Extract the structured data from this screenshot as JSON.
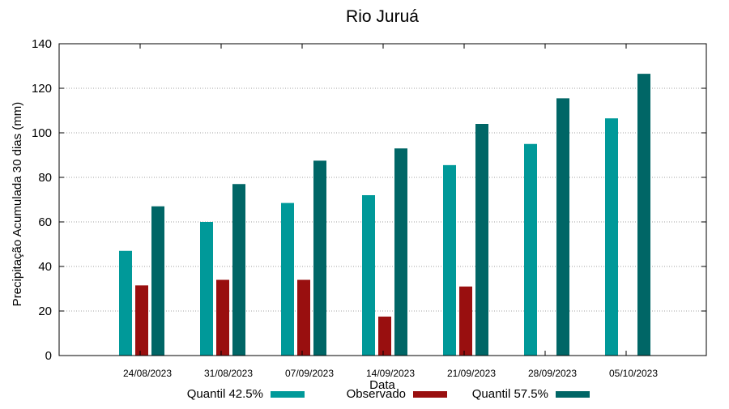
{
  "chart_data": {
    "type": "bar",
    "title": "Rio Juruá",
    "xlabel": "Data",
    "ylabel": "Precipitação Acumulada 30 dias (mm)",
    "categories": [
      "24/08/2023",
      "31/08/2023",
      "07/09/2023",
      "14/09/2023",
      "21/09/2023",
      "28/09/2023",
      "05/10/2023"
    ],
    "ylim": [
      0,
      140
    ],
    "yticks": [
      0,
      20,
      40,
      60,
      80,
      100,
      120,
      140
    ],
    "grid": true,
    "legend_position": "bottom",
    "series": [
      {
        "name": "Quantil 42.5%",
        "color": "#009999",
        "values": [
          47,
          60,
          68.5,
          72,
          85.5,
          95,
          106.5
        ]
      },
      {
        "name": "Observado",
        "color": "#990f0f",
        "values": [
          31.5,
          34,
          34,
          17.5,
          31,
          null,
          null
        ]
      },
      {
        "name": "Quantil 57.5%",
        "color": "#006666",
        "values": [
          67,
          77,
          87.5,
          93,
          104,
          115.5,
          126.5
        ]
      }
    ]
  }
}
